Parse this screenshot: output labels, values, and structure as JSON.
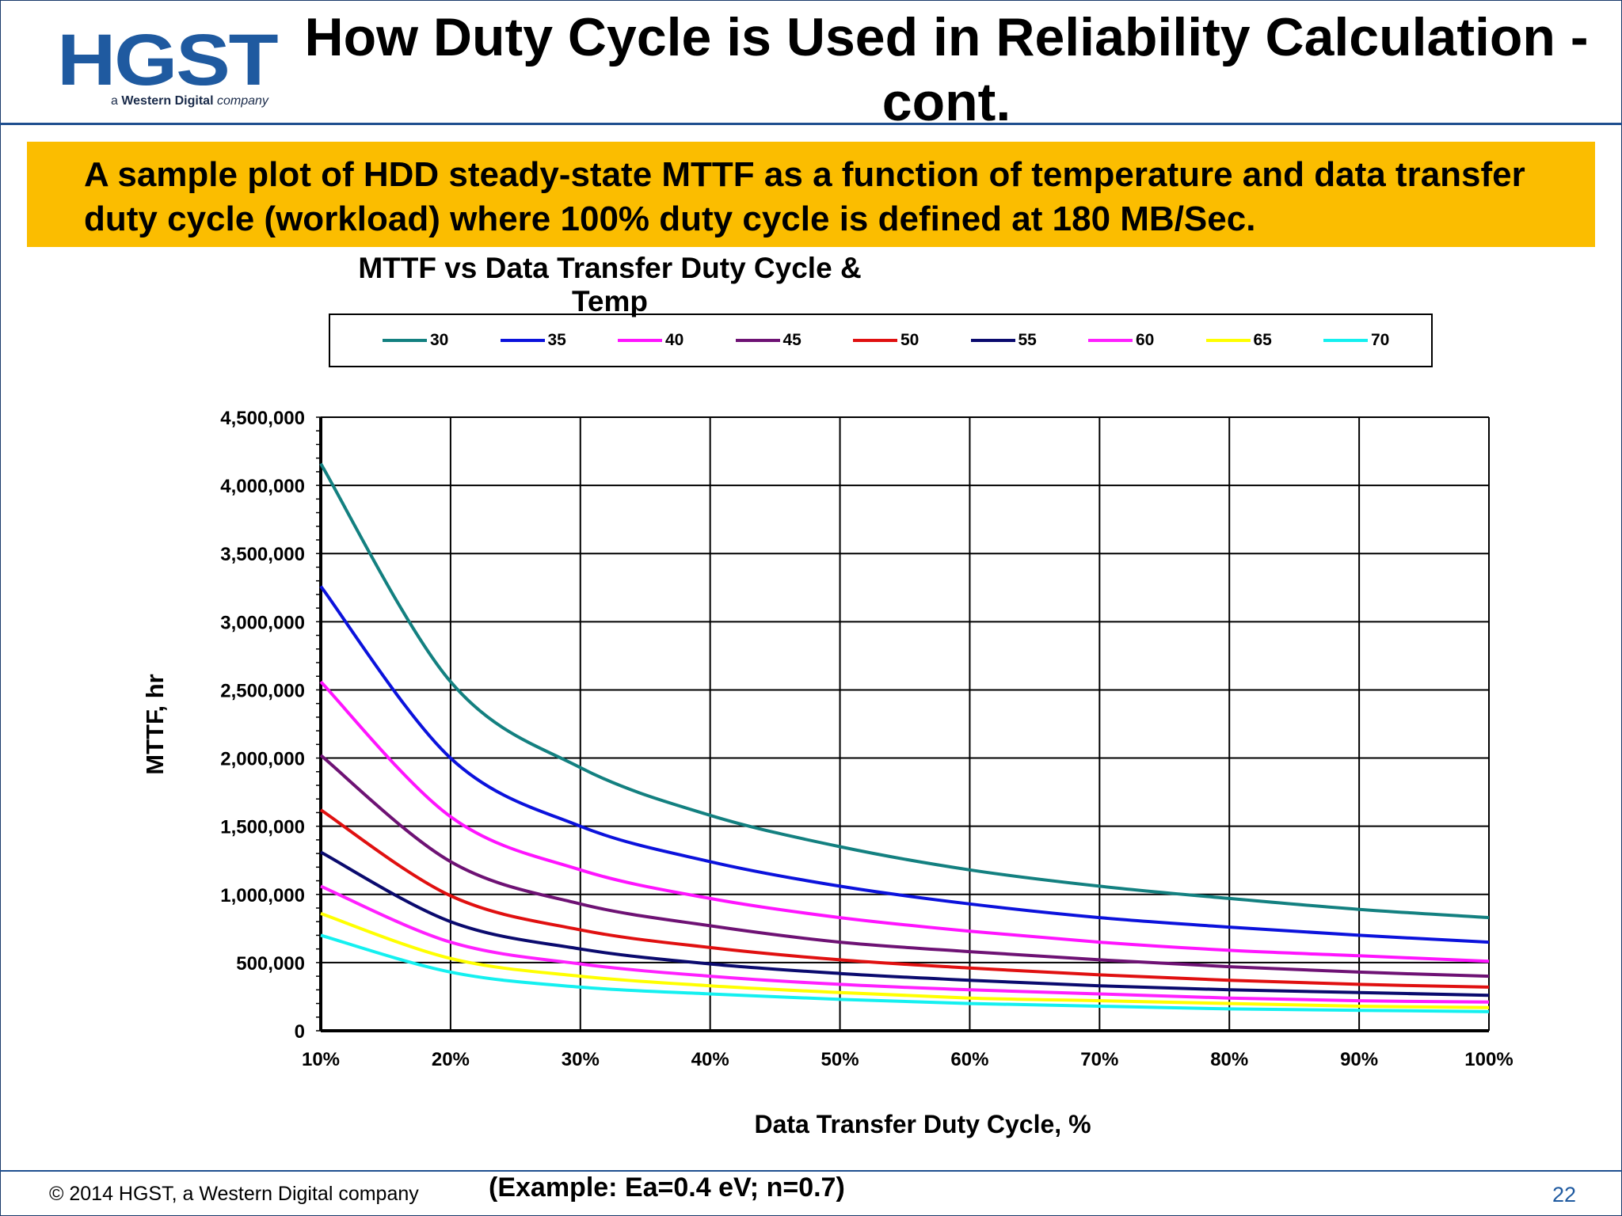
{
  "logo": {
    "main": "HGST",
    "sub_prefix": "a ",
    "sub_bold": "Western Digital",
    "sub_suffix": " company"
  },
  "slide_title": "How Duty Cycle is Used in Reliability Calculation - cont.",
  "banner_text": "A sample plot of HDD steady-state MTTF as a function of temperature and data transfer duty cycle (workload) where 100% duty cycle is defined at 180 MB/Sec.",
  "footer": {
    "copyright": "© 2014 HGST, a Western Digital company",
    "example": "(Example: Ea=0.4 eV; n=0.7)",
    "page_number": "22"
  },
  "chart_data": {
    "type": "line",
    "title": "MTTF vs Data Transfer Duty Cycle & Temp",
    "xlabel": "Data Transfer Duty Cycle, %",
    "ylabel": "MTTF, hr",
    "x": [
      10,
      20,
      30,
      40,
      50,
      60,
      70,
      80,
      90,
      100
    ],
    "x_tick_labels": [
      "10%",
      "20%",
      "30%",
      "40%",
      "50%",
      "60%",
      "70%",
      "80%",
      "90%",
      "100%"
    ],
    "y_ticks": [
      0,
      500000,
      1000000,
      1500000,
      2000000,
      2500000,
      3000000,
      3500000,
      4000000,
      4500000
    ],
    "y_tick_labels": [
      "0",
      "500,000",
      "1,000,000",
      "1,500,000",
      "2,000,000",
      "2,500,000",
      "3,000,000",
      "3,500,000",
      "4,000,000",
      "4,500,000"
    ],
    "xlim": [
      10,
      100
    ],
    "ylim": [
      0,
      4500000
    ],
    "grid": true,
    "legend_position": "top",
    "series": [
      {
        "name": "30",
        "color": "#138080",
        "values": [
          4160000,
          2560000,
          1930000,
          1580000,
          1350000,
          1180000,
          1060000,
          970000,
          890000,
          830000
        ]
      },
      {
        "name": "35",
        "color": "#0b12dc",
        "values": [
          3260000,
          2000000,
          1500000,
          1240000,
          1060000,
          930000,
          830000,
          760000,
          700000,
          650000
        ]
      },
      {
        "name": "40",
        "color": "#ff14ff",
        "values": [
          2560000,
          1570000,
          1180000,
          970000,
          830000,
          730000,
          650000,
          590000,
          550000,
          510000
        ]
      },
      {
        "name": "45",
        "color": "#6e1274",
        "values": [
          2020000,
          1240000,
          930000,
          770000,
          650000,
          580000,
          520000,
          470000,
          430000,
          400000
        ]
      },
      {
        "name": "50",
        "color": "#e01010",
        "values": [
          1620000,
          990000,
          740000,
          610000,
          520000,
          460000,
          410000,
          370000,
          340000,
          320000
        ]
      },
      {
        "name": "55",
        "color": "#0a0a6e",
        "values": [
          1310000,
          800000,
          600000,
          490000,
          420000,
          370000,
          330000,
          300000,
          280000,
          260000
        ]
      },
      {
        "name": "60",
        "color": "#ff20ff",
        "values": [
          1060000,
          650000,
          490000,
          400000,
          340000,
          300000,
          270000,
          240000,
          220000,
          210000
        ]
      },
      {
        "name": "65",
        "color": "#ffff00",
        "values": [
          860000,
          530000,
          400000,
          330000,
          280000,
          240000,
          220000,
          200000,
          180000,
          170000
        ]
      },
      {
        "name": "70",
        "color": "#14f0f0",
        "values": [
          700000,
          430000,
          320000,
          270000,
          230000,
          200000,
          180000,
          160000,
          150000,
          140000
        ]
      }
    ]
  }
}
